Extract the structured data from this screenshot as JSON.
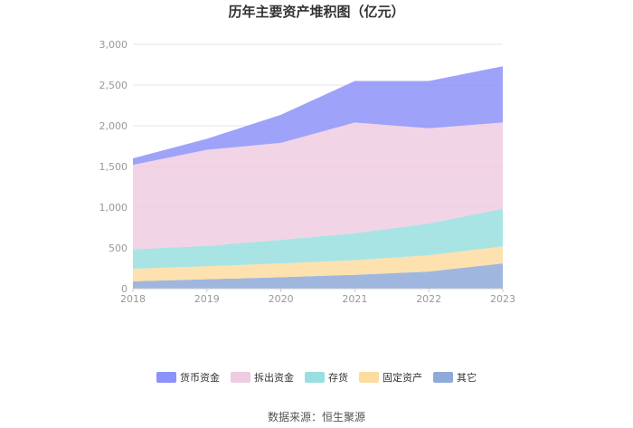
{
  "chart_data": {
    "type": "area",
    "stacked": true,
    "title": "历年主要资产堆积图（亿元）",
    "x": [
      "2018",
      "2019",
      "2020",
      "2021",
      "2022",
      "2023"
    ],
    "ylim": [
      0,
      3000
    ],
    "yticks": [
      0,
      500,
      1000,
      1500,
      2000,
      2500,
      3000
    ],
    "ytick_labels": [
      "0",
      "500",
      "1,000",
      "1,500",
      "2,000",
      "2,500",
      "3,000"
    ],
    "grid": true,
    "legend_position": "bottom",
    "series": [
      {
        "name": "其它",
        "color": "#8eaad8",
        "values": [
          90,
          115,
          140,
          170,
          210,
          310
        ]
      },
      {
        "name": "固定资产",
        "color": "#fddca0",
        "values": [
          155,
          160,
          170,
          180,
          200,
          210
        ]
      },
      {
        "name": "存货",
        "color": "#9adfdf",
        "values": [
          235,
          250,
          290,
          330,
          390,
          460
        ]
      },
      {
        "name": "拆出资金",
        "color": "#eecce2",
        "values": [
          1040,
          1180,
          1190,
          1360,
          1170,
          1060
        ]
      },
      {
        "name": "货币资金",
        "color": "#8d92f8",
        "values": [
          80,
          135,
          345,
          510,
          580,
          690
        ]
      }
    ],
    "legend_order": [
      "货币资金",
      "拆出资金",
      "存货",
      "固定资产",
      "其它"
    ]
  },
  "source": "数据来源：恒生聚源"
}
